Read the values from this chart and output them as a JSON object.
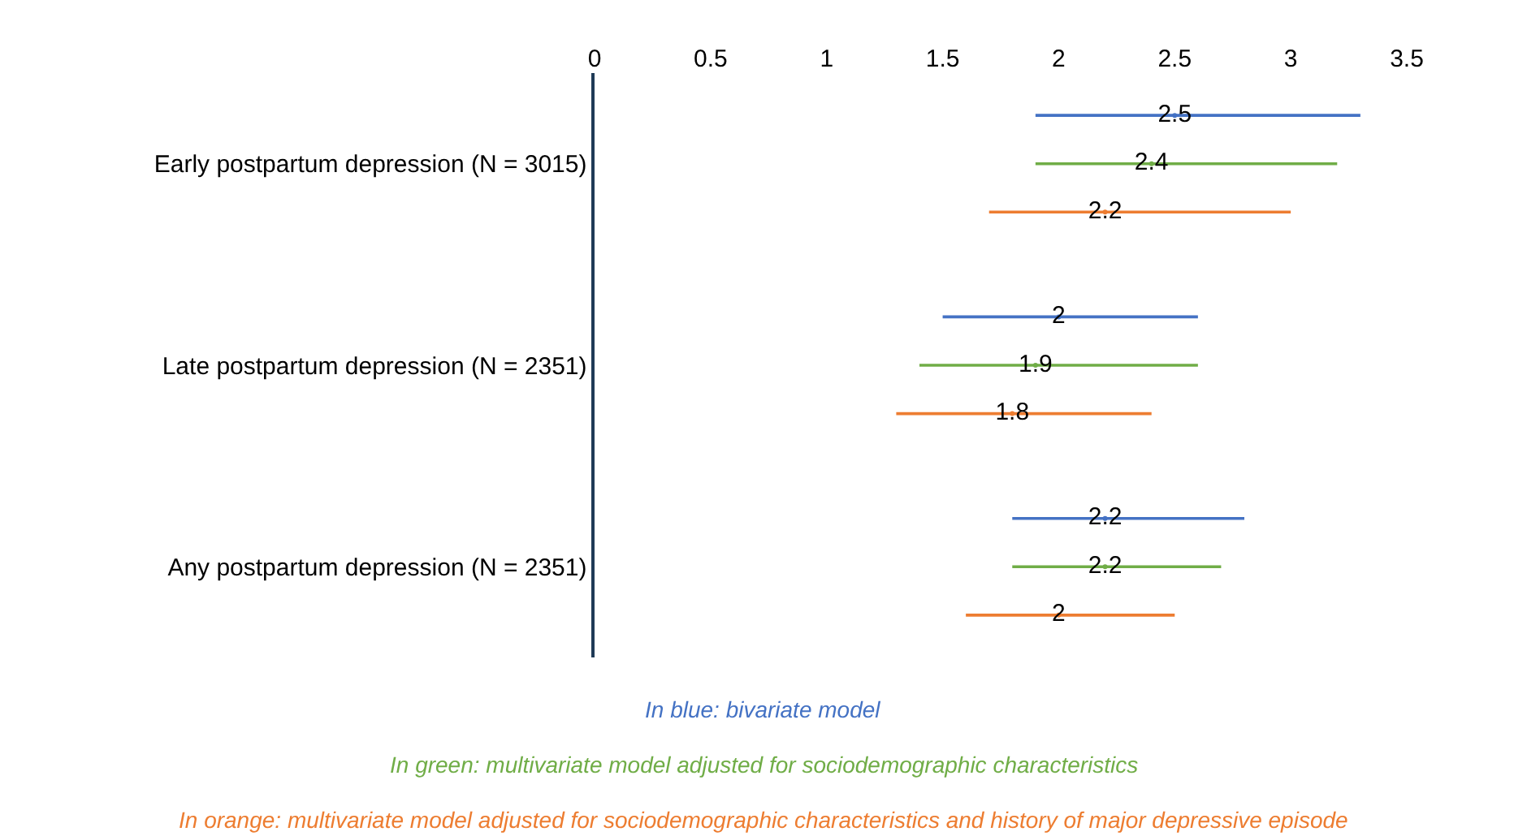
{
  "chart_data": {
    "type": "scatter",
    "orientation": "horizontal",
    "categories": [
      "Early postpartum depression (N = 3015)",
      "Late postpartum depression (N = 2351)",
      "Any postpartum depression (N = 2351)"
    ],
    "series": [
      {
        "name": "In blue: bivariate model",
        "color": "#4472c4",
        "values": [
          2.5,
          2,
          2.2
        ],
        "errors": [
          [
            1.9,
            3.3
          ],
          [
            1.5,
            2.6
          ],
          [
            1.8,
            2.8
          ]
        ]
      },
      {
        "name": "In green: multivariate model adjusted for sociodemographic characteristics",
        "color": "#70ad47",
        "values": [
          2.4,
          1.9,
          2.2
        ],
        "errors": [
          [
            1.9,
            3.2
          ],
          [
            1.4,
            2.6
          ],
          [
            1.8,
            2.7
          ]
        ]
      },
      {
        "name": "In orange: multivariate model adjusted for sociodemographic characteristics and history of major depressive episode",
        "color": "#ed7d31",
        "values": [
          2.2,
          1.8,
          2
        ],
        "errors": [
          [
            1.7,
            3.0
          ],
          [
            1.3,
            2.4
          ],
          [
            1.6,
            2.5
          ]
        ]
      }
    ],
    "xlim": [
      0,
      3.5
    ],
    "xticks": [
      0,
      0.5,
      1,
      1.5,
      2,
      2.5,
      3,
      3.5
    ],
    "data_labels": true,
    "grid": false
  }
}
